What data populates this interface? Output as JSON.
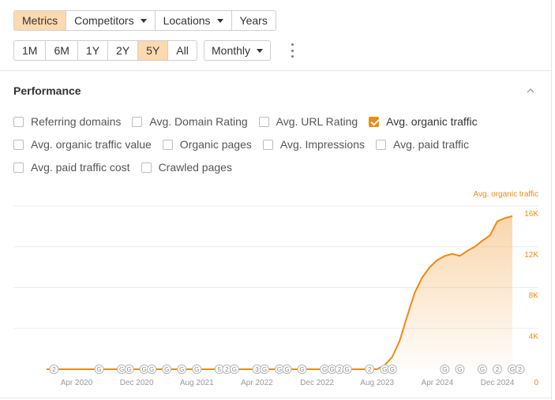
{
  "toolbar": {
    "view_tabs": [
      {
        "label": "Metrics",
        "active": true,
        "dropdown": false
      },
      {
        "label": "Competitors",
        "active": false,
        "dropdown": true
      },
      {
        "label": "Locations",
        "active": false,
        "dropdown": true
      },
      {
        "label": "Years",
        "active": false,
        "dropdown": false
      }
    ],
    "ranges": [
      "1M",
      "6M",
      "1Y",
      "2Y",
      "5Y",
      "All"
    ],
    "active_range": "5Y",
    "granularity": "Monthly",
    "more_icon": "kebab-vertical-icon"
  },
  "performance": {
    "title": "Performance",
    "collapse_icon": "chevron-up-icon",
    "metrics": [
      [
        {
          "label": "Referring domains",
          "checked": false
        },
        {
          "label": "Avg. Domain Rating",
          "checked": false
        },
        {
          "label": "Avg. URL Rating",
          "checked": false
        },
        {
          "label": "Avg. organic traffic",
          "checked": true
        }
      ],
      [
        {
          "label": "Avg. organic traffic value",
          "checked": false
        },
        {
          "label": "Organic pages",
          "checked": false
        },
        {
          "label": "Avg. Impressions",
          "checked": false
        },
        {
          "label": "Avg. paid traffic",
          "checked": false
        }
      ],
      [
        {
          "label": "Avg. paid traffic cost",
          "checked": false
        },
        {
          "label": "Crawled pages",
          "checked": false
        }
      ]
    ]
  },
  "colors": {
    "accent": "#f08a12",
    "active_bg": "#fcd9b1",
    "grid": "#eeeeee",
    "axis_text": "#999999"
  },
  "chart_data": {
    "type": "area",
    "series": [
      {
        "name": "Avg. organic traffic",
        "color": "#f08a12",
        "points": [
          [
            "2019-12",
            0
          ],
          [
            "2020-06",
            0
          ],
          [
            "2021-01",
            0
          ],
          [
            "2021-06",
            0
          ],
          [
            "2022-01",
            0
          ],
          [
            "2022-06",
            0
          ],
          [
            "2023-01",
            0
          ],
          [
            "2023-06",
            0
          ],
          [
            "2023-08",
            0
          ],
          [
            "2023-09",
            400
          ],
          [
            "2023-10",
            1200
          ],
          [
            "2023-11",
            2800
          ],
          [
            "2023-12",
            5200
          ],
          [
            "2024-01",
            7500
          ],
          [
            "2024-02",
            9000
          ],
          [
            "2024-03",
            10000
          ],
          [
            "2024-04",
            10700
          ],
          [
            "2024-05",
            11100
          ],
          [
            "2024-06",
            11300
          ],
          [
            "2024-07",
            11100
          ],
          [
            "2024-08",
            11600
          ],
          [
            "2024-09",
            12000
          ],
          [
            "2024-10",
            12600
          ],
          [
            "2024-11",
            13100
          ],
          [
            "2024-12",
            14500
          ],
          [
            "2025-01",
            14800
          ],
          [
            "2025-02",
            15000
          ]
        ]
      }
    ],
    "x_ticks": [
      "Apr 2020",
      "Dec 2020",
      "Aug 2021",
      "Apr 2022",
      "Dec 2022",
      "Aug 2023",
      "Apr 2024",
      "Dec 2024"
    ],
    "y_ticks": [
      "0",
      "4K",
      "8K",
      "12K",
      "16K"
    ],
    "ylim": [
      0,
      16000
    ],
    "y_axis_label": "Avg. organic traffic",
    "y_axis_position": "right",
    "grid": true,
    "annotations": [
      {
        "date": "2020-01",
        "label": "2"
      },
      {
        "date": "2020-07",
        "label": "G"
      },
      {
        "date": "2020-10",
        "label": "G"
      },
      {
        "date": "2020-11",
        "label": "G"
      },
      {
        "date": "2021-01",
        "label": "G"
      },
      {
        "date": "2021-02",
        "label": "G"
      },
      {
        "date": "2021-04",
        "label": "G"
      },
      {
        "date": "2021-06",
        "label": "G"
      },
      {
        "date": "2021-08",
        "label": "G"
      },
      {
        "date": "2021-11",
        "label": "5"
      },
      {
        "date": "2021-12",
        "label": "2"
      },
      {
        "date": "2022-01",
        "label": "G"
      },
      {
        "date": "2022-04",
        "label": "3"
      },
      {
        "date": "2022-05",
        "label": "G"
      },
      {
        "date": "2022-07",
        "label": "G"
      },
      {
        "date": "2022-08",
        "label": "G"
      },
      {
        "date": "2022-10",
        "label": "G"
      },
      {
        "date": "2023-01",
        "label": "G"
      },
      {
        "date": "2023-02",
        "label": "G"
      },
      {
        "date": "2023-03",
        "label": "2"
      },
      {
        "date": "2023-04",
        "label": "G"
      },
      {
        "date": "2023-07",
        "label": "2"
      },
      {
        "date": "2023-09",
        "label": "G"
      },
      {
        "date": "2023-10",
        "label": "G"
      },
      {
        "date": "2024-05",
        "label": "G"
      },
      {
        "date": "2024-07",
        "label": "G"
      },
      {
        "date": "2024-10",
        "label": "G"
      },
      {
        "date": "2024-12",
        "label": "2"
      },
      {
        "date": "2025-02",
        "label": "G"
      },
      {
        "date": "2025-03",
        "label": "2"
      },
      {
        "date": "2025-05",
        "label": "G"
      },
      {
        "date": "2025-06",
        "label": "2"
      },
      {
        "date": "2025-08",
        "label": "G"
      },
      {
        "date": "2025-09",
        "label": "G"
      }
    ]
  }
}
